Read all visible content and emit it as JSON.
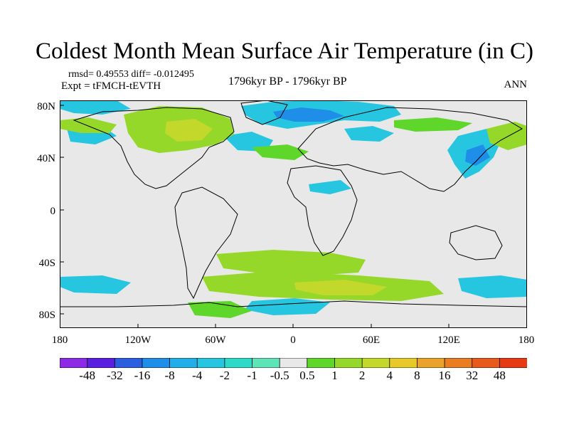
{
  "title": "Coldest Month Mean Surface Air Temperature (in C)",
  "stats": "rmsd= 0.49553 diff= -0.012495",
  "experiment": "Expt = tFMCH-tEVTH",
  "period": "1796kyr BP - 1796kyr BP",
  "season": "ANN",
  "lat_labels": [
    "80N",
    "40N",
    "0",
    "40S",
    "80S"
  ],
  "lat_values": [
    80,
    40,
    0,
    -40,
    -80
  ],
  "lon_labels": [
    "180",
    "120W",
    "60W",
    "0",
    "60E",
    "120E",
    "180"
  ],
  "lon_values": [
    -180,
    -120,
    -60,
    0,
    60,
    120,
    180
  ],
  "colorbar": {
    "colors": [
      "#8d2ae6",
      "#5a1ee0",
      "#2b5fe0",
      "#1e8ee8",
      "#22aee8",
      "#27c6e0",
      "#2fd9c8",
      "#5fe4b8",
      "#e8e8e8",
      "#5ed62a",
      "#95d82a",
      "#c2d82a",
      "#e8c92a",
      "#eaa22a",
      "#ea7d22",
      "#e85a1c",
      "#e63a14"
    ],
    "labels": [
      "-48",
      "-32",
      "-16",
      "-8",
      "-4",
      "-2",
      "-1",
      "-0.5",
      "0.5",
      "1",
      "2",
      "4",
      "8",
      "16",
      "32",
      "48"
    ]
  },
  "map_background": "#e8e8e8"
}
